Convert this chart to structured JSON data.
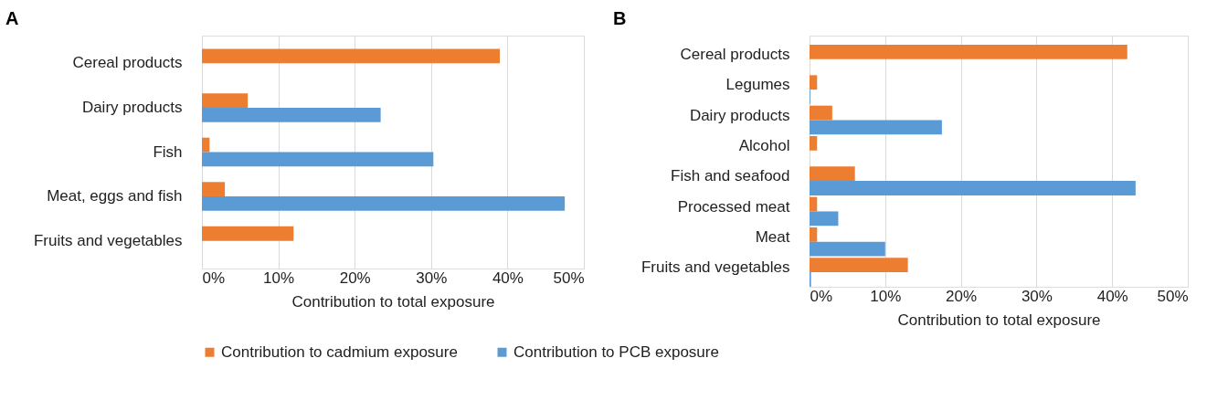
{
  "chart_data": [
    {
      "type": "bar",
      "title": "A",
      "orientation": "horizontal",
      "xlabel": "Contribution to total exposure",
      "categories": [
        "Cereal products",
        "Dairy products",
        "Fish",
        "Meat, eggs and fish",
        "Fruits and vegetables"
      ],
      "series": [
        {
          "name": "Contribution to cadmium exposure",
          "color": "#ed7d31",
          "values": [
            39,
            6,
            1,
            3,
            12
          ]
        },
        {
          "name": "Contribution to PCB exposure",
          "color": "#5b9bd5",
          "values": [
            null,
            23.4,
            30.3,
            47.5,
            null
          ]
        }
      ],
      "xlim": [
        0,
        50
      ],
      "xticks": [
        {
          "value": 0,
          "label": "0%"
        },
        {
          "value": 10,
          "label": "10%"
        },
        {
          "value": 20,
          "label": "20%"
        },
        {
          "value": 30,
          "label": "30%"
        },
        {
          "value": 40,
          "label": "40%"
        },
        {
          "value": 50,
          "label": "50%"
        }
      ],
      "grid": "x",
      "legend": "bottom"
    },
    {
      "type": "bar",
      "title": "B",
      "orientation": "horizontal",
      "xlabel": "Contribution to total exposure",
      "categories": [
        "Cereal products",
        "Legumes",
        "Dairy products",
        "Alcohol",
        "Fish and seafood",
        "Processed meat",
        "Meat",
        "Fruits and vegetables"
      ],
      "series": [
        {
          "name": "Contribution to cadmium exposure",
          "color": "#ed7d31",
          "values": [
            42,
            1,
            3,
            1,
            6,
            1,
            1,
            13
          ]
        },
        {
          "name": "Contribution to PCB exposure",
          "color": "#5b9bd5",
          "values": [
            null,
            0.1,
            17.5,
            null,
            43.1,
            3.8,
            10,
            0.2
          ]
        }
      ],
      "xlim": [
        0,
        50
      ],
      "xticks": [
        {
          "value": 0,
          "label": "0%"
        },
        {
          "value": 10,
          "label": "10%"
        },
        {
          "value": 20,
          "label": "20%"
        },
        {
          "value": 30,
          "label": "30%"
        },
        {
          "value": 40,
          "label": "40%"
        },
        {
          "value": 50,
          "label": "50%"
        }
      ],
      "grid": "x",
      "legend": "bottom"
    }
  ]
}
